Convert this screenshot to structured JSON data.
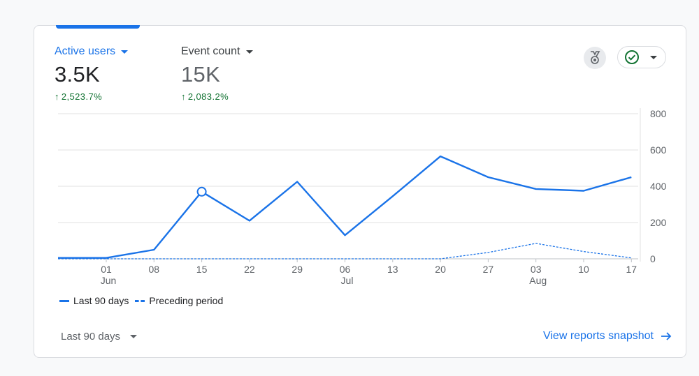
{
  "metrics": [
    {
      "label": "Active users",
      "value": "3.5K",
      "change": "2,523.7%"
    },
    {
      "label": "Event count",
      "value": "15K",
      "change": "2,083.2%"
    }
  ],
  "colors": {
    "accent": "#1a73e8",
    "positive": "#137333",
    "gridline": "#e0e0e0"
  },
  "icons": {
    "insights": "insights-badge-icon",
    "status": "check-circle-icon"
  },
  "legend": {
    "current": "Last 90 days",
    "previous": "Preceding period"
  },
  "footer": {
    "date_range": "Last 90 days",
    "view_link": "View reports snapshot"
  },
  "chart_data": {
    "type": "line",
    "x_tick_labels": [
      "01",
      "08",
      "15",
      "22",
      "29",
      "06",
      "13",
      "20",
      "27",
      "03",
      "10",
      "17"
    ],
    "month_labels": [
      {
        "label": "Jun",
        "at_tick": "01"
      },
      {
        "label": "Jul",
        "at_tick": "06"
      },
      {
        "label": "Aug",
        "at_tick": "03"
      }
    ],
    "y_ticks": [
      0,
      200,
      400,
      600,
      800
    ],
    "ylim": [
      0,
      800
    ],
    "y_axis_side": "right",
    "grid": true,
    "legend_position": "bottom-left",
    "highlighted_point_index": 3,
    "series": [
      {
        "name": "Last 90 days",
        "style": "solid",
        "values": [
          5,
          5,
          50,
          370,
          210,
          425,
          130,
          345,
          565,
          450,
          385,
          375,
          450
        ]
      },
      {
        "name": "Preceding period",
        "style": "dashed",
        "values": [
          0,
          0,
          0,
          0,
          0,
          0,
          0,
          0,
          0,
          35,
          85,
          40,
          5
        ]
      }
    ]
  }
}
